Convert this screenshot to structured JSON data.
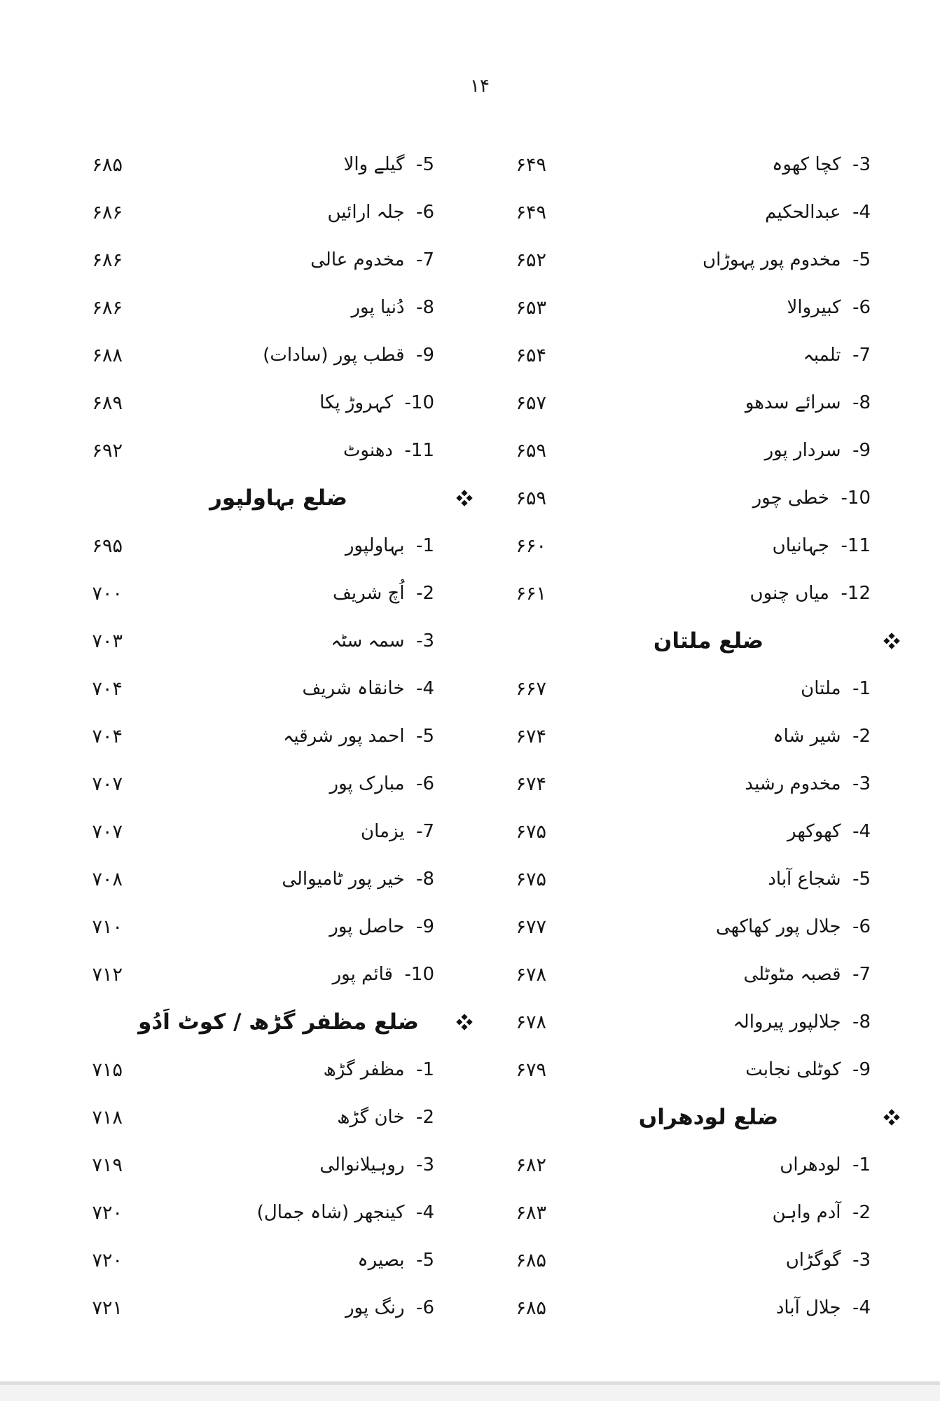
{
  "document": {
    "page_number": "۱۴",
    "right_column": {
      "rows": [
        {
          "type": "entry",
          "num": "3",
          "name": "کچا کھوہ",
          "page": "۶۴۹"
        },
        {
          "type": "entry",
          "num": "4",
          "name": "عبدالحکیم",
          "page": "۶۴۹"
        },
        {
          "type": "entry",
          "num": "5",
          "name": "مخدوم پور پہوڑاں",
          "page": "۶۵۲"
        },
        {
          "type": "entry",
          "num": "6",
          "name": "کبیروالا",
          "page": "۶۵۳"
        },
        {
          "type": "entry",
          "num": "7",
          "name": "تلمبہ",
          "page": "۶۵۴"
        },
        {
          "type": "entry",
          "num": "8",
          "name": "سرائے سدھو",
          "page": "۶۵۷"
        },
        {
          "type": "entry",
          "num": "9",
          "name": "سردار پور",
          "page": "۶۵۹"
        },
        {
          "type": "entry",
          "num": "10",
          "name": "خطی چور",
          "page": "۶۵۹"
        },
        {
          "type": "entry",
          "num": "11",
          "name": "جہانیاں",
          "page": "۶۶۰"
        },
        {
          "type": "entry",
          "num": "12",
          "name": "میاں چنوں",
          "page": "۶۶۱"
        },
        {
          "type": "heading",
          "title": "ضلع ملتان"
        },
        {
          "type": "entry",
          "num": "1",
          "name": "ملتان",
          "page": "۶۶۷"
        },
        {
          "type": "entry",
          "num": "2",
          "name": "شیر شاہ",
          "page": "۶۷۴"
        },
        {
          "type": "entry",
          "num": "3",
          "name": "مخدوم رشید",
          "page": "۶۷۴"
        },
        {
          "type": "entry",
          "num": "4",
          "name": "کھوکھر",
          "page": "۶۷۵"
        },
        {
          "type": "entry",
          "num": "5",
          "name": "شجاع آباد",
          "page": "۶۷۵"
        },
        {
          "type": "entry",
          "num": "6",
          "name": "جلال پور کھاکھی",
          "page": "۶۷۷"
        },
        {
          "type": "entry",
          "num": "7",
          "name": "قصبہ مٹوٹلی",
          "page": "۶۷۸"
        },
        {
          "type": "entry",
          "num": "8",
          "name": "جلالپور پیروالہ",
          "page": "۶۷۸"
        },
        {
          "type": "entry",
          "num": "9",
          "name": "کوٹلی نجابت",
          "page": "۶۷۹"
        },
        {
          "type": "heading",
          "title": "ضلع لودھراں"
        },
        {
          "type": "entry",
          "num": "1",
          "name": "لودھراں",
          "page": "۶۸۲"
        },
        {
          "type": "entry",
          "num": "2",
          "name": "آدم واہن",
          "page": "۶۸۳"
        },
        {
          "type": "entry",
          "num": "3",
          "name": "گوگڑاں",
          "page": "۶۸۵"
        },
        {
          "type": "entry",
          "num": "4",
          "name": "جلال آباد",
          "page": "۶۸۵"
        }
      ]
    },
    "left_column": {
      "rows": [
        {
          "type": "entry",
          "num": "5",
          "name": "گیلے والا",
          "page": "۶۸۵"
        },
        {
          "type": "entry",
          "num": "6",
          "name": "جلہ ارائیں",
          "page": "۶۸۶"
        },
        {
          "type": "entry",
          "num": "7",
          "name": "مخدوم عالی",
          "page": "۶۸۶"
        },
        {
          "type": "entry",
          "num": "8",
          "name": "دُنیا پور",
          "page": "۶۸۶"
        },
        {
          "type": "entry",
          "num": "9",
          "name": "قطب پور (سادات)",
          "page": "۶۸۸"
        },
        {
          "type": "entry",
          "num": "10",
          "name": "کہروڑ پکا",
          "page": "۶۸۹"
        },
        {
          "type": "entry",
          "num": "11",
          "name": "دھنوٹ",
          "page": "۶۹۲"
        },
        {
          "type": "heading",
          "title": "ضلع بہاولپور"
        },
        {
          "type": "entry",
          "num": "1",
          "name": "بہاولپور",
          "page": "۶۹۵"
        },
        {
          "type": "entry",
          "num": "2",
          "name": "اُچ شریف",
          "page": "۷۰۰"
        },
        {
          "type": "entry",
          "num": "3",
          "name": "سمہ سٹہ",
          "page": "۷۰۳"
        },
        {
          "type": "entry",
          "num": "4",
          "name": "خانقاہ شریف",
          "page": "۷۰۴"
        },
        {
          "type": "entry",
          "num": "5",
          "name": "احمد پور شرقیہ",
          "page": "۷۰۴"
        },
        {
          "type": "entry",
          "num": "6",
          "name": "مبارک پور",
          "page": "۷۰۷"
        },
        {
          "type": "entry",
          "num": "7",
          "name": "یزمان",
          "page": "۷۰۷"
        },
        {
          "type": "entry",
          "num": "8",
          "name": "خیر پور ٹامیوالی",
          "page": "۷۰۸"
        },
        {
          "type": "entry",
          "num": "9",
          "name": "حاصل پور",
          "page": "۷۱۰"
        },
        {
          "type": "entry",
          "num": "10",
          "name": "قائم پور",
          "page": "۷۱۲"
        },
        {
          "type": "heading",
          "title": "ضلع مظفر گڑھ / کوٹ اَدُو"
        },
        {
          "type": "entry",
          "num": "1",
          "name": "مظفر گڑھ",
          "page": "۷۱۵"
        },
        {
          "type": "entry",
          "num": "2",
          "name": "خان گڑھ",
          "page": "۷۱۸"
        },
        {
          "type": "entry",
          "num": "3",
          "name": "روہیلانوالی",
          "page": "۷۱۹"
        },
        {
          "type": "entry",
          "num": "4",
          "name": "کینجھر (شاہ جمال)",
          "page": "۷۲۰"
        },
        {
          "type": "entry",
          "num": "5",
          "name": "بصیرہ",
          "page": "۷۲۰"
        },
        {
          "type": "entry",
          "num": "6",
          "name": "رنگ پور",
          "page": "۷۲۱"
        }
      ]
    }
  }
}
